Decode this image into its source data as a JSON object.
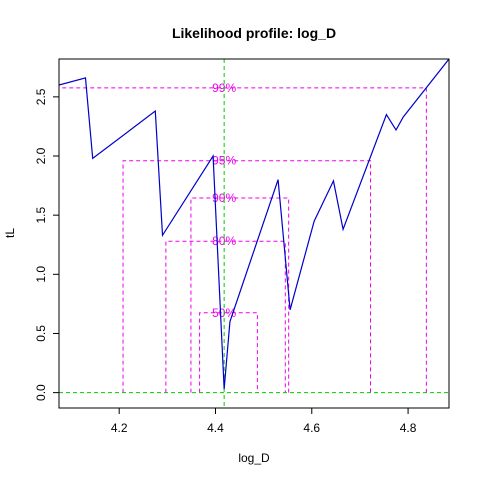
{
  "chart_data": {
    "type": "line",
    "title": "Likelihood profile: log_D",
    "xlabel": "log_D",
    "ylabel": "tL",
    "xlim": [
      4.075,
      4.885
    ],
    "ylim": [
      -0.13,
      2.82
    ],
    "x_ticks": [
      4.2,
      4.4,
      4.6,
      4.8
    ],
    "x_tick_labels": [
      "4.2",
      "4.4",
      "4.6",
      "4.8"
    ],
    "y_ticks": [
      0.0,
      0.5,
      1.0,
      1.5,
      2.0,
      2.5
    ],
    "y_tick_labels": [
      "0.0",
      "0.5",
      "1.0",
      "1.5",
      "2.0",
      "2.5"
    ],
    "series": [
      {
        "color": "#0000cc",
        "x": [
          4.075,
          4.13,
          4.145,
          4.275,
          4.29,
          4.395,
          4.418,
          4.43,
          4.53,
          4.555,
          4.605,
          4.645,
          4.665,
          4.755,
          4.775,
          4.79,
          4.885
        ],
        "y": [
          2.6,
          2.66,
          1.98,
          2.38,
          1.33,
          2.0,
          0.03,
          0.6,
          1.8,
          0.7,
          1.45,
          1.79,
          1.38,
          2.35,
          2.22,
          2.33,
          2.82
        ]
      }
    ],
    "reference_lines": {
      "vertical_x": 4.418,
      "horizontal_y": 0.0,
      "color": "#00cc00"
    },
    "confidence_intervals": [
      {
        "label": "50%",
        "level": 0.675,
        "lower": 4.367,
        "upper": 4.487
      },
      {
        "label": "80%",
        "level": 1.28,
        "lower": 4.297,
        "upper": 4.545
      },
      {
        "label": "90%",
        "level": 1.645,
        "lower": 4.349,
        "upper": 4.552
      },
      {
        "label": "95%",
        "level": 1.96,
        "lower": 4.208,
        "upper": 4.722
      },
      {
        "label": "99%",
        "level": 2.576,
        "lower": 4.075,
        "upper": 4.838
      }
    ],
    "ci_color": "#ee00ee",
    "grid": false,
    "legend": "none"
  }
}
